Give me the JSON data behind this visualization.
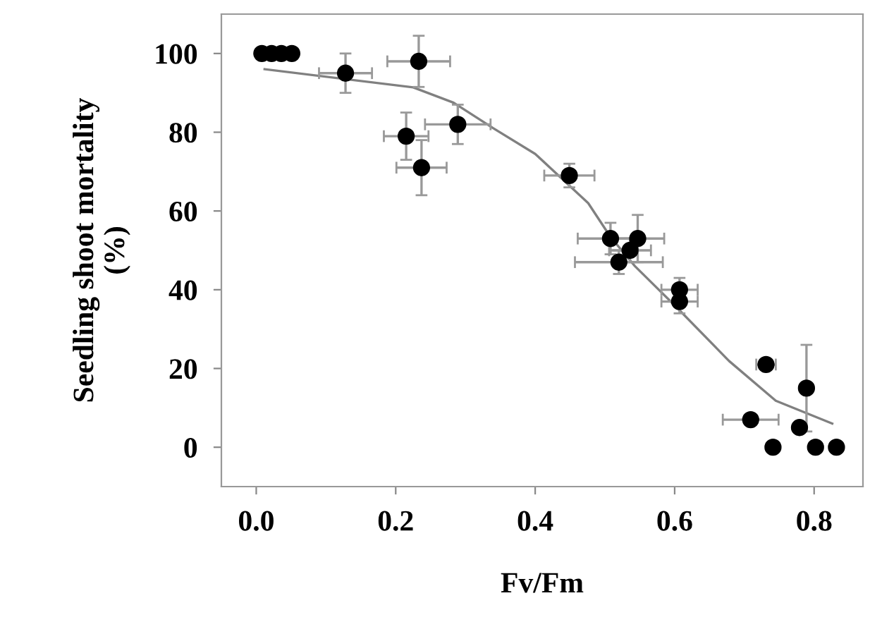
{
  "chart_data": {
    "type": "scatter",
    "xlabel": "Fv/Fm",
    "ylabel": "Seedling shoot mortality\n(%)",
    "xlim": [
      -0.05,
      0.87
    ],
    "ylim": [
      -10,
      110
    ],
    "xticks": [
      {
        "value": 0,
        "label": "0.0"
      },
      {
        "value": 0.2,
        "label": "0.2"
      },
      {
        "value": 0.4,
        "label": "0.4"
      },
      {
        "value": 0.6,
        "label": "0.6"
      },
      {
        "value": 0.8,
        "label": "0.8"
      }
    ],
    "yticks": [
      0,
      20,
      40,
      60,
      80,
      100
    ],
    "grid": false,
    "legend": false,
    "series": [
      {
        "color": "#000000",
        "marker": "circle",
        "x": [
          0.008,
          0.022,
          0.036,
          0.051,
          0.128,
          0.233,
          0.215,
          0.237,
          0.289,
          0.449,
          0.508,
          0.547,
          0.536,
          0.52,
          0.607,
          0.607,
          0.731,
          0.789,
          0.709,
          0.779,
          0.741,
          0.802,
          0.832
        ],
        "values": [
          100,
          100,
          100,
          100,
          95,
          98,
          79,
          71,
          82,
          69,
          53,
          53,
          50,
          47,
          40,
          37,
          21,
          15,
          7,
          5,
          0,
          0,
          0
        ],
        "xerrors": [
          null,
          null,
          null,
          0.008,
          0.038,
          0.045,
          0.032,
          0.036,
          0.047,
          0.036,
          0.047,
          0.038,
          0.03,
          0.063,
          0.026,
          0.026,
          0.014,
          null,
          0.04,
          null,
          null,
          null,
          null
        ],
        "errors": [
          null,
          null,
          null,
          null,
          5,
          6.5,
          6,
          7,
          5,
          3,
          4,
          6,
          3,
          3,
          3,
          3,
          null,
          11,
          null,
          null,
          null,
          null,
          null
        ]
      },
      {
        "type": "line",
        "color": "#808080",
        "marker": "none",
        "line_style": "solid",
        "x": [
          0.012,
          0.225,
          0.283,
          0.34,
          0.4,
          0.476,
          0.508,
          0.543,
          0.603,
          0.678,
          0.745,
          0.826
        ],
        "values": [
          96,
          91.4,
          87.5,
          81,
          74.5,
          62,
          53.4,
          46,
          35.5,
          21.9,
          11.8,
          6
        ]
      }
    ]
  }
}
